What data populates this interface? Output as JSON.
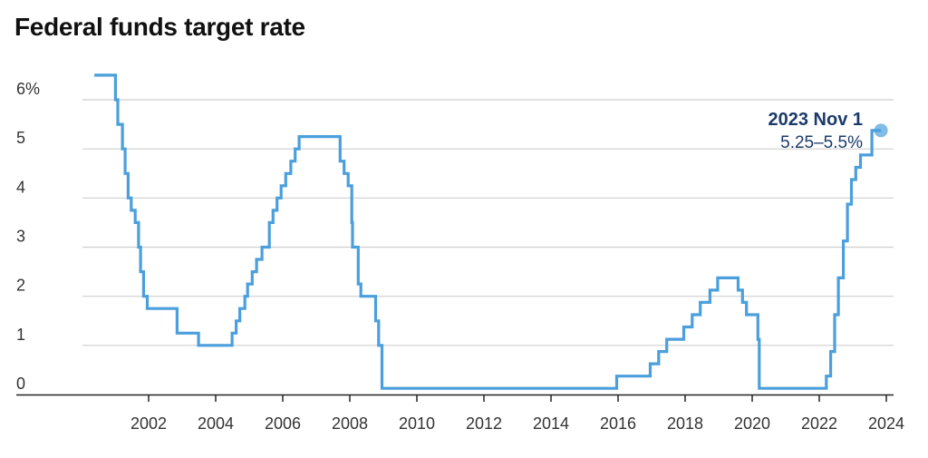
{
  "title": "Federal funds target rate",
  "colors": {
    "line": "#4a9fdc",
    "grid": "#cfcfcf",
    "axis": "#222222",
    "annotation": "#1b3a6b"
  },
  "chart_data": {
    "type": "line",
    "title": "Federal funds target rate",
    "xlabel": "",
    "ylabel": "",
    "xlim": [
      1999.6,
      2024.1
    ],
    "ylim": [
      0,
      6.5
    ],
    "grid": true,
    "y_ticks": [
      {
        "value": 0,
        "label": "0"
      },
      {
        "value": 1,
        "label": "1"
      },
      {
        "value": 2,
        "label": "2"
      },
      {
        "value": 3,
        "label": "3"
      },
      {
        "value": 4,
        "label": "4"
      },
      {
        "value": 5,
        "label": "5"
      },
      {
        "value": 6,
        "label": "6%"
      }
    ],
    "x_ticks": [
      {
        "value": 2002,
        "label": "2002"
      },
      {
        "value": 2004,
        "label": "2004"
      },
      {
        "value": 2006,
        "label": "2006"
      },
      {
        "value": 2008,
        "label": "2008"
      },
      {
        "value": 2010,
        "label": "2010"
      },
      {
        "value": 2012,
        "label": "2012"
      },
      {
        "value": 2014,
        "label": "2014"
      },
      {
        "value": 2016,
        "label": "2016"
      },
      {
        "value": 2018,
        "label": "2018"
      },
      {
        "value": 2020,
        "label": "2020"
      },
      {
        "value": 2022,
        "label": "2022"
      },
      {
        "value": 2024,
        "label": "2024"
      }
    ],
    "series": [
      {
        "points": [
          [
            2000.38,
            6.5
          ],
          [
            2001.01,
            6.0
          ],
          [
            2001.08,
            5.5
          ],
          [
            2001.22,
            5.0
          ],
          [
            2001.3,
            4.5
          ],
          [
            2001.39,
            4.0
          ],
          [
            2001.48,
            3.75
          ],
          [
            2001.6,
            3.5
          ],
          [
            2001.7,
            3.0
          ],
          [
            2001.76,
            2.5
          ],
          [
            2001.85,
            2.0
          ],
          [
            2001.96,
            1.75
          ],
          [
            2002.85,
            1.25
          ],
          [
            2003.49,
            1.0
          ],
          [
            2004.49,
            1.25
          ],
          [
            2004.61,
            1.5
          ],
          [
            2004.72,
            1.75
          ],
          [
            2004.87,
            2.0
          ],
          [
            2004.95,
            2.25
          ],
          [
            2005.09,
            2.5
          ],
          [
            2005.22,
            2.75
          ],
          [
            2005.38,
            3.0
          ],
          [
            2005.6,
            3.5
          ],
          [
            2005.71,
            3.75
          ],
          [
            2005.83,
            4.0
          ],
          [
            2005.95,
            4.25
          ],
          [
            2006.09,
            4.5
          ],
          [
            2006.24,
            4.75
          ],
          [
            2006.37,
            5.0
          ],
          [
            2006.49,
            5.25
          ],
          [
            2007.71,
            4.75
          ],
          [
            2007.83,
            4.5
          ],
          [
            2007.95,
            4.25
          ],
          [
            2008.06,
            3.5
          ],
          [
            2008.08,
            3.0
          ],
          [
            2008.25,
            2.25
          ],
          [
            2008.33,
            2.0
          ],
          [
            2008.77,
            1.5
          ],
          [
            2008.86,
            1.0
          ],
          [
            2008.96,
            0.125
          ],
          [
            2015.96,
            0.375
          ],
          [
            2016.96,
            0.625
          ],
          [
            2017.21,
            0.875
          ],
          [
            2017.45,
            1.125
          ],
          [
            2017.96,
            1.375
          ],
          [
            2018.21,
            1.625
          ],
          [
            2018.45,
            1.875
          ],
          [
            2018.74,
            2.125
          ],
          [
            2018.97,
            2.375
          ],
          [
            2019.58,
            2.125
          ],
          [
            2019.71,
            1.875
          ],
          [
            2019.83,
            1.625
          ],
          [
            2020.17,
            1.125
          ],
          [
            2020.21,
            0.125
          ],
          [
            2022.21,
            0.375
          ],
          [
            2022.34,
            0.875
          ],
          [
            2022.46,
            1.625
          ],
          [
            2022.57,
            2.375
          ],
          [
            2022.72,
            3.125
          ],
          [
            2022.84,
            3.875
          ],
          [
            2022.96,
            4.375
          ],
          [
            2023.09,
            4.625
          ],
          [
            2023.23,
            4.875
          ],
          [
            2023.57,
            5.375
          ],
          [
            2023.84,
            5.375
          ]
        ]
      }
    ],
    "annotation": {
      "date": "2023 Nov 1",
      "value_text": "5.25–5.5%",
      "point": [
        2023.84,
        5.375
      ]
    }
  }
}
